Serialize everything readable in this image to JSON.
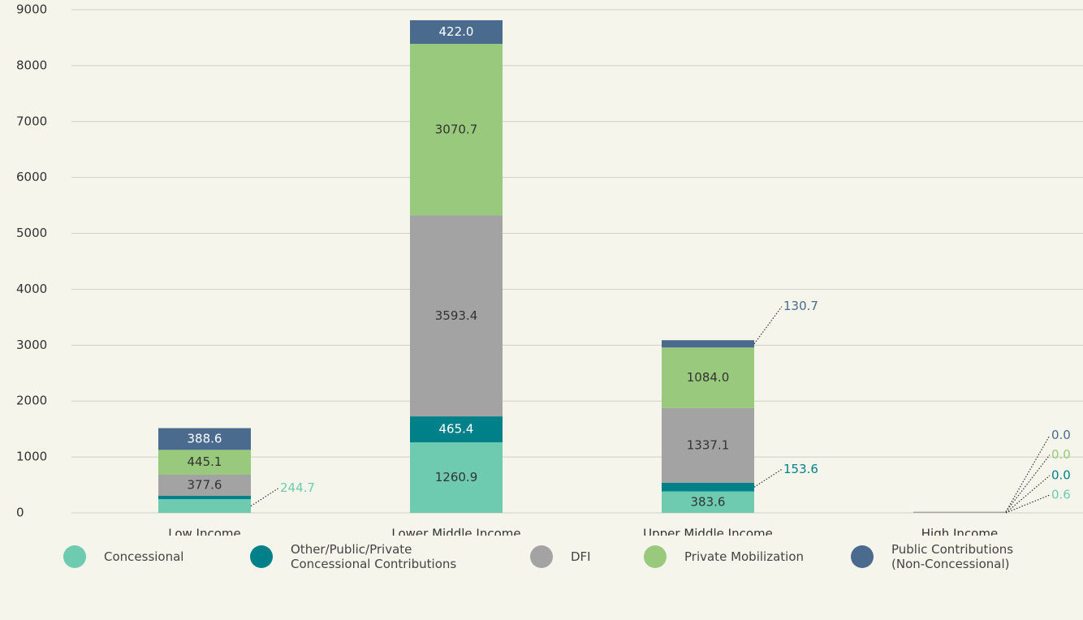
{
  "chart_data": {
    "type": "stacked_bar",
    "categories": [
      "Low Income",
      "Lower Middle Income",
      "Upper Middle Income",
      "High Income"
    ],
    "series": [
      {
        "name": "Concessional",
        "color": "#6ecbb0",
        "values": [
          244.7,
          1260.9,
          383.6,
          0.6
        ],
        "value_labels": [
          "244.7",
          "1260.9",
          "383.6",
          "0.6"
        ]
      },
      {
        "name": "Other/Public/Private Concessional Contributions",
        "color": "#00818a",
        "values": [
          60,
          465.4,
          153.6,
          0.0
        ],
        "value_labels": [
          null,
          "465.4",
          "153.6",
          "0.0"
        ]
      },
      {
        "name": "DFI",
        "color": "#a3a3a3",
        "values": [
          377.6,
          3593.4,
          1337.1,
          20
        ],
        "value_labels": [
          "377.6",
          "3593.4",
          "1337.1",
          null
        ]
      },
      {
        "name": "Private Mobilization",
        "color": "#98c97c",
        "values": [
          445.1,
          3070.7,
          1084.0,
          0.0
        ],
        "value_labels": [
          "445.1",
          "3070.7",
          "1084.0",
          "0.0"
        ]
      },
      {
        "name": "Public Contributions (Non-Concessional)",
        "color": "#4a6a8e",
        "values": [
          388.6,
          422.0,
          130.7,
          0.0
        ],
        "value_labels": [
          "388.6",
          "422.0",
          "130.7",
          "0.0"
        ]
      }
    ],
    "ylim": [
      0,
      9000
    ],
    "yticks": [
      0,
      1000,
      2000,
      3000,
      4000,
      5000,
      6000,
      7000,
      8000,
      9000
    ],
    "grid": true,
    "legend": "bottom"
  }
}
